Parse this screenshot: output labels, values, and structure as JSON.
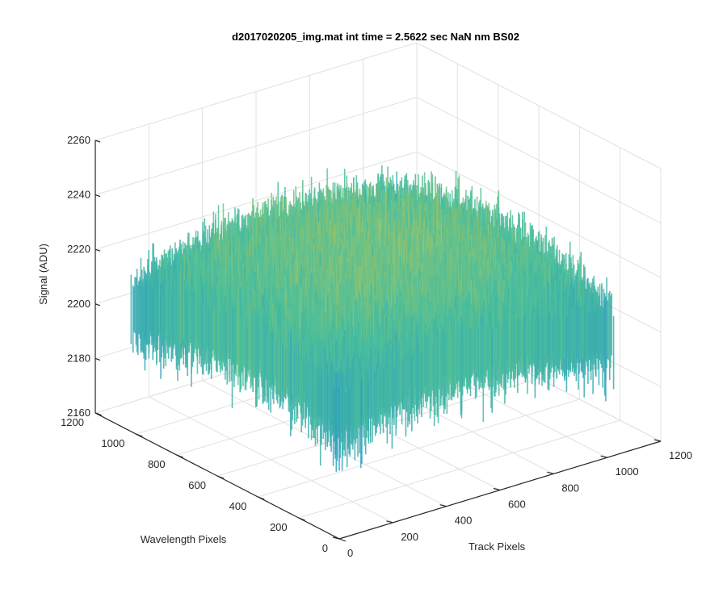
{
  "chart_data": {
    "type": "surface",
    "title": "d2017020205_img.mat int time = 2.5622 sec  NaN nm BS02",
    "xlabel": "Track Pixels",
    "ylabel": "Wavelength Pixels",
    "zlabel": "Signal (ADU)",
    "xlim": [
      0,
      1200
    ],
    "ylim": [
      0,
      1200
    ],
    "zlim": [
      2160,
      2260
    ],
    "xticks": [
      "0",
      "200",
      "400",
      "600",
      "800",
      "1000",
      "1200"
    ],
    "yticks": [
      "0",
      "200",
      "400",
      "600",
      "800",
      "1000",
      "1200"
    ],
    "zticks": [
      "2160",
      "2180",
      "2200",
      "2220",
      "2240",
      "2260"
    ],
    "grid": true,
    "colormap": "parula",
    "surface_summary": {
      "track_pixel_extent": [
        0,
        1024
      ],
      "wavelength_pixel_extent": [
        0,
        1024
      ],
      "mean_signal": 2212,
      "center_signal": 2222,
      "edge_signal": 2205,
      "noise_range": [
        2172,
        2256
      ]
    }
  },
  "colors": {
    "low": "#1f8fd4",
    "mid": "#4cbf9a",
    "high": "#e8c93b",
    "axis": "#262626",
    "grid": "#e0e0e0"
  }
}
